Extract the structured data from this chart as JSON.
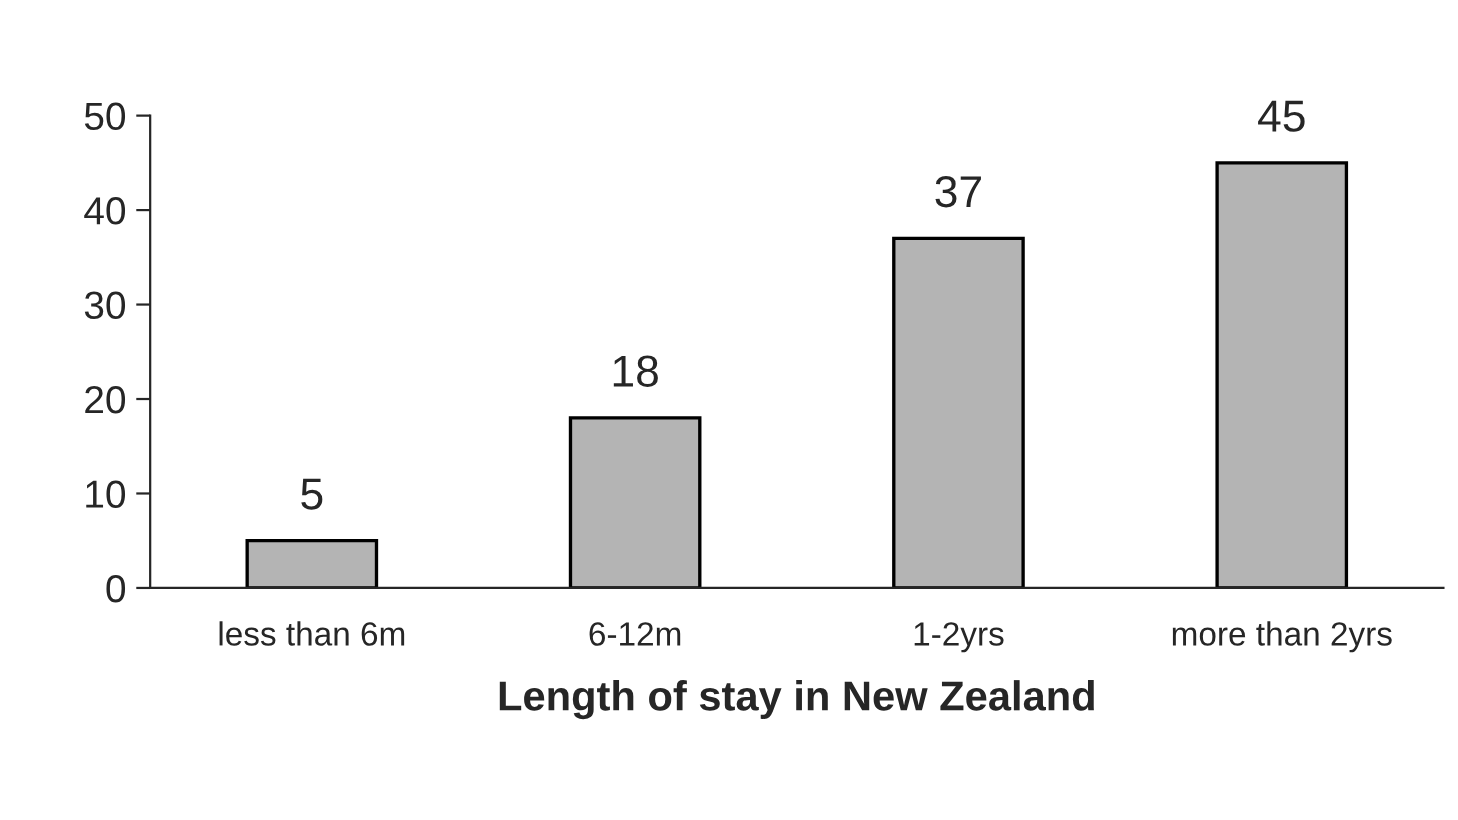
{
  "chart_data": {
    "type": "bar",
    "xlabel": "Length of stay in New Zealand",
    "categories": [
      "less than 6m",
      "6-12m",
      "1-2yrs",
      "more than 2yrs"
    ],
    "values": [
      5,
      18,
      37,
      45
    ],
    "color": "#b4b4b4",
    "ylim": [
      0,
      50
    ],
    "yticks": [
      0,
      10,
      20,
      30,
      40,
      50
    ],
    "data_labels": true,
    "grid": false
  }
}
